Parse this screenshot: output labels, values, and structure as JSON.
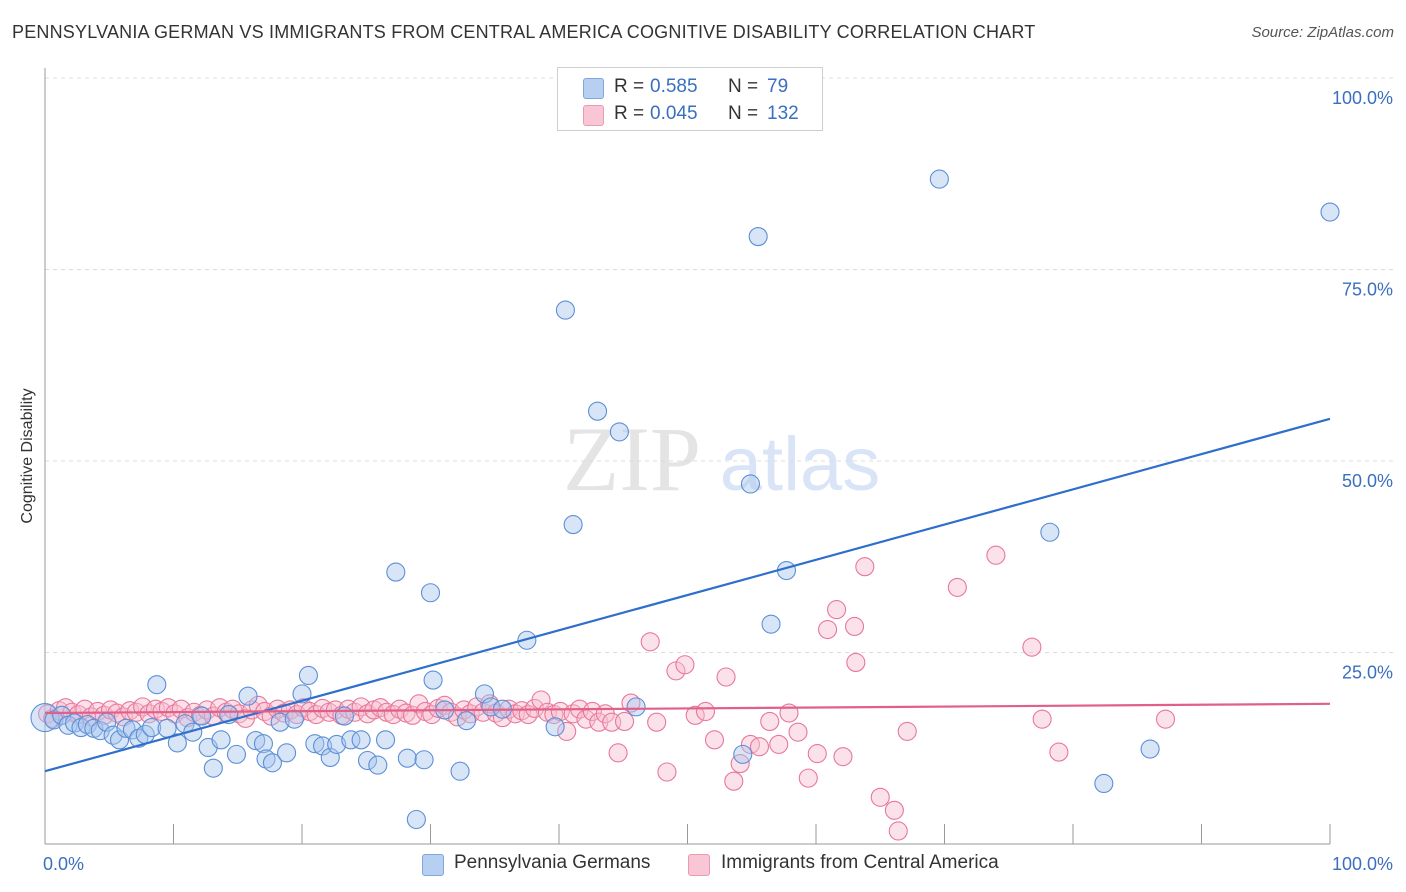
{
  "title": "PENNSYLVANIA GERMAN VS IMMIGRANTS FROM CENTRAL AMERICA COGNITIVE DISABILITY CORRELATION CHART",
  "source": "Source: ZipAtlas.com",
  "watermark": {
    "zip": "ZIP",
    "atlas": "atlas"
  },
  "legend": {
    "rows": [
      {
        "r_label": "R =",
        "r_value": "0.585",
        "n_label": "N =",
        "n_value": "79"
      },
      {
        "r_label": "R =",
        "r_value": "0.045",
        "n_label": "N =",
        "n_value": "132"
      }
    ]
  },
  "bottom_legend": [
    "Pennsylvania Germans",
    "Immigrants from Central America"
  ],
  "chart_data": {
    "type": "scatter",
    "title": "PENNSYLVANIA GERMAN VS IMMIGRANTS FROM CENTRAL AMERICA COGNITIVE DISABILITY CORRELATION CHART",
    "xlabel": "",
    "ylabel": "Cognitive Disability",
    "xlim": [
      0,
      100
    ],
    "ylim": [
      0,
      100
    ],
    "x_tick_labels": [
      "0.0%",
      "100.0%"
    ],
    "y_tick_labels": [
      "100.0%",
      "75.0%",
      "50.0%",
      "25.0%"
    ],
    "y_ticks": [
      100,
      75,
      50,
      25
    ],
    "x_minor_ticks": [
      0,
      10,
      20,
      30,
      40,
      50,
      60,
      70,
      80,
      90,
      100
    ],
    "grid": "horizontal dashed",
    "legend_placement": "top-center",
    "series": [
      {
        "name": "Pennsylvania Germans",
        "color": "#5b8fd6",
        "fill": "#a9c6ee",
        "R": 0.585,
        "N": 79,
        "trend": {
          "x0": 0,
          "y0": 9.5,
          "x1": 100,
          "y1": 55.5
        },
        "points": [
          [
            0,
            16.5
          ],
          [
            0.7,
            16.2
          ],
          [
            1.3,
            16.8
          ],
          [
            1.8,
            15.5
          ],
          [
            2.3,
            15.8
          ],
          [
            2.8,
            15.2
          ],
          [
            3.3,
            15.6
          ],
          [
            3.8,
            15.1
          ],
          [
            4.3,
            14.8
          ],
          [
            4.8,
            15.9
          ],
          [
            5.3,
            14.2
          ],
          [
            5.8,
            13.6
          ],
          [
            6.3,
            15.1
          ],
          [
            6.8,
            14.9
          ],
          [
            7.3,
            13.8
          ],
          [
            7.8,
            14.3
          ],
          [
            8.3,
            15.2
          ],
          [
            8.7,
            20.8
          ],
          [
            9.5,
            15.1
          ],
          [
            10.3,
            13.2
          ],
          [
            10.9,
            15.7
          ],
          [
            11.5,
            14.6
          ],
          [
            12.2,
            16.7
          ],
          [
            12.7,
            12.6
          ],
          [
            13.1,
            9.9
          ],
          [
            13.7,
            13.6
          ],
          [
            14.3,
            16.9
          ],
          [
            14.9,
            11.7
          ],
          [
            15.8,
            19.3
          ],
          [
            16.4,
            13.5
          ],
          [
            17.0,
            13.1
          ],
          [
            17.2,
            11.1
          ],
          [
            17.7,
            10.6
          ],
          [
            18.3,
            15.9
          ],
          [
            18.8,
            11.9
          ],
          [
            19.4,
            16.3
          ],
          [
            20.0,
            19.6
          ],
          [
            20.5,
            22.0
          ],
          [
            21.0,
            13.1
          ],
          [
            21.6,
            12.8
          ],
          [
            22.2,
            11.3
          ],
          [
            22.7,
            13.0
          ],
          [
            23.3,
            16.7
          ],
          [
            23.8,
            13.6
          ],
          [
            24.6,
            13.6
          ],
          [
            25.1,
            10.9
          ],
          [
            25.9,
            10.3
          ],
          [
            26.5,
            13.6
          ],
          [
            27.3,
            35.5
          ],
          [
            28.2,
            11.2
          ],
          [
            28.9,
            3.2
          ],
          [
            29.5,
            11.0
          ],
          [
            30.0,
            32.8
          ],
          [
            30.2,
            21.4
          ],
          [
            31.1,
            17.5
          ],
          [
            32.3,
            9.5
          ],
          [
            32.8,
            16.1
          ],
          [
            34.2,
            19.6
          ],
          [
            34.7,
            17.9
          ],
          [
            35.6,
            17.6
          ],
          [
            37.5,
            26.6
          ],
          [
            39.7,
            15.3
          ],
          [
            40.5,
            69.7
          ],
          [
            41.1,
            41.7
          ],
          [
            43.0,
            56.5
          ],
          [
            44.7,
            53.8
          ],
          [
            46.0,
            17.9
          ],
          [
            54.3,
            11.7
          ],
          [
            54.9,
            47.0
          ],
          [
            55.5,
            79.3
          ],
          [
            56.5,
            28.7
          ],
          [
            57.7,
            35.7
          ],
          [
            69.6,
            86.8
          ],
          [
            78.2,
            40.7
          ],
          [
            82.4,
            7.9
          ],
          [
            86.0,
            12.4
          ],
          [
            100.0,
            82.5
          ]
        ]
      },
      {
        "name": "Immigrants from Central America",
        "color": "#e8779b",
        "fill": "#f7bfd0",
        "R": 0.045,
        "N": 132,
        "trend": {
          "x0": 0,
          "y0": 17.1,
          "x1": 100,
          "y1": 18.3
        },
        "points": [
          [
            0.2,
            17.0
          ],
          [
            0.6,
            16.4
          ],
          [
            1.1,
            17.4
          ],
          [
            1.6,
            17.8
          ],
          [
            2.1,
            17.2
          ],
          [
            2.6,
            16.9
          ],
          [
            3.1,
            17.6
          ],
          [
            3.6,
            16.6
          ],
          [
            4.1,
            17.3
          ],
          [
            4.6,
            16.8
          ],
          [
            5.1,
            17.5
          ],
          [
            5.6,
            17.1
          ],
          [
            6.1,
            16.6
          ],
          [
            6.6,
            17.4
          ],
          [
            7.1,
            17.2
          ],
          [
            7.6,
            17.9
          ],
          [
            8.1,
            17.0
          ],
          [
            8.6,
            17.6
          ],
          [
            9.1,
            17.3
          ],
          [
            9.6,
            17.8
          ],
          [
            10.1,
            17.0
          ],
          [
            10.6,
            17.6
          ],
          [
            11.1,
            16.5
          ],
          [
            11.6,
            17.2
          ],
          [
            12.1,
            16.8
          ],
          [
            12.6,
            17.5
          ],
          [
            13.1,
            16.7
          ],
          [
            13.6,
            17.8
          ],
          [
            14.1,
            17.2
          ],
          [
            14.6,
            17.6
          ],
          [
            15.1,
            17.0
          ],
          [
            15.6,
            16.4
          ],
          [
            16.1,
            17.5
          ],
          [
            16.6,
            18.1
          ],
          [
            17.1,
            17.3
          ],
          [
            17.6,
            16.7
          ],
          [
            18.1,
            17.6
          ],
          [
            18.6,
            17.1
          ],
          [
            19.1,
            17.5
          ],
          [
            19.6,
            16.9
          ],
          [
            20.1,
            17.8
          ],
          [
            20.6,
            17.3
          ],
          [
            21.1,
            16.9
          ],
          [
            21.6,
            17.7
          ],
          [
            22.1,
            17.2
          ],
          [
            22.6,
            17.5
          ],
          [
            23.1,
            16.8
          ],
          [
            23.6,
            17.6
          ],
          [
            24.1,
            17.2
          ],
          [
            24.6,
            17.9
          ],
          [
            25.1,
            17.0
          ],
          [
            25.6,
            17.5
          ],
          [
            26.1,
            17.8
          ],
          [
            26.6,
            17.2
          ],
          [
            27.1,
            16.9
          ],
          [
            27.6,
            17.6
          ],
          [
            28.1,
            17.1
          ],
          [
            28.6,
            16.8
          ],
          [
            29.1,
            18.3
          ],
          [
            29.6,
            17.3
          ],
          [
            30.1,
            16.9
          ],
          [
            30.6,
            17.7
          ],
          [
            31.1,
            18.1
          ],
          [
            31.6,
            17.2
          ],
          [
            32.1,
            16.6
          ],
          [
            32.6,
            17.5
          ],
          [
            33.1,
            17.0
          ],
          [
            33.6,
            17.9
          ],
          [
            34.1,
            17.2
          ],
          [
            34.6,
            18.3
          ],
          [
            35.1,
            17.1
          ],
          [
            35.6,
            16.5
          ],
          [
            36.1,
            17.6
          ],
          [
            36.6,
            17.0
          ],
          [
            37.1,
            17.4
          ],
          [
            37.6,
            16.9
          ],
          [
            38.1,
            17.7
          ],
          [
            38.6,
            18.8
          ],
          [
            39.1,
            17.2
          ],
          [
            39.6,
            16.9
          ],
          [
            40.1,
            17.3
          ],
          [
            40.6,
            14.7
          ],
          [
            41.1,
            17.0
          ],
          [
            41.6,
            17.6
          ],
          [
            42.1,
            16.3
          ],
          [
            42.6,
            17.3
          ],
          [
            43.1,
            15.9
          ],
          [
            43.6,
            17.0
          ],
          [
            44.1,
            15.9
          ],
          [
            44.6,
            11.9
          ],
          [
            45.1,
            16.0
          ],
          [
            45.6,
            18.4
          ],
          [
            47.1,
            26.4
          ],
          [
            47.6,
            15.9
          ],
          [
            48.4,
            9.4
          ],
          [
            49.1,
            22.6
          ],
          [
            49.8,
            23.4
          ],
          [
            50.6,
            16.8
          ],
          [
            51.4,
            17.3
          ],
          [
            52.1,
            13.6
          ],
          [
            53.0,
            21.8
          ],
          [
            53.6,
            8.2
          ],
          [
            54.1,
            10.5
          ],
          [
            54.9,
            13.0
          ],
          [
            55.6,
            12.7
          ],
          [
            56.4,
            16.0
          ],
          [
            57.1,
            13.0
          ],
          [
            57.9,
            17.1
          ],
          [
            58.6,
            14.6
          ],
          [
            59.4,
            8.6
          ],
          [
            60.1,
            11.8
          ],
          [
            60.9,
            28.0
          ],
          [
            61.6,
            30.6
          ],
          [
            62.1,
            11.4
          ],
          [
            63.0,
            28.4
          ],
          [
            63.1,
            23.7
          ],
          [
            63.8,
            36.2
          ],
          [
            65.0,
            6.1
          ],
          [
            66.1,
            4.4
          ],
          [
            66.4,
            1.7
          ],
          [
            67.1,
            14.7
          ],
          [
            71.0,
            33.5
          ],
          [
            74.0,
            37.7
          ],
          [
            76.8,
            25.7
          ],
          [
            77.6,
            16.3
          ],
          [
            78.9,
            12.0
          ],
          [
            87.2,
            16.3
          ]
        ]
      }
    ]
  }
}
